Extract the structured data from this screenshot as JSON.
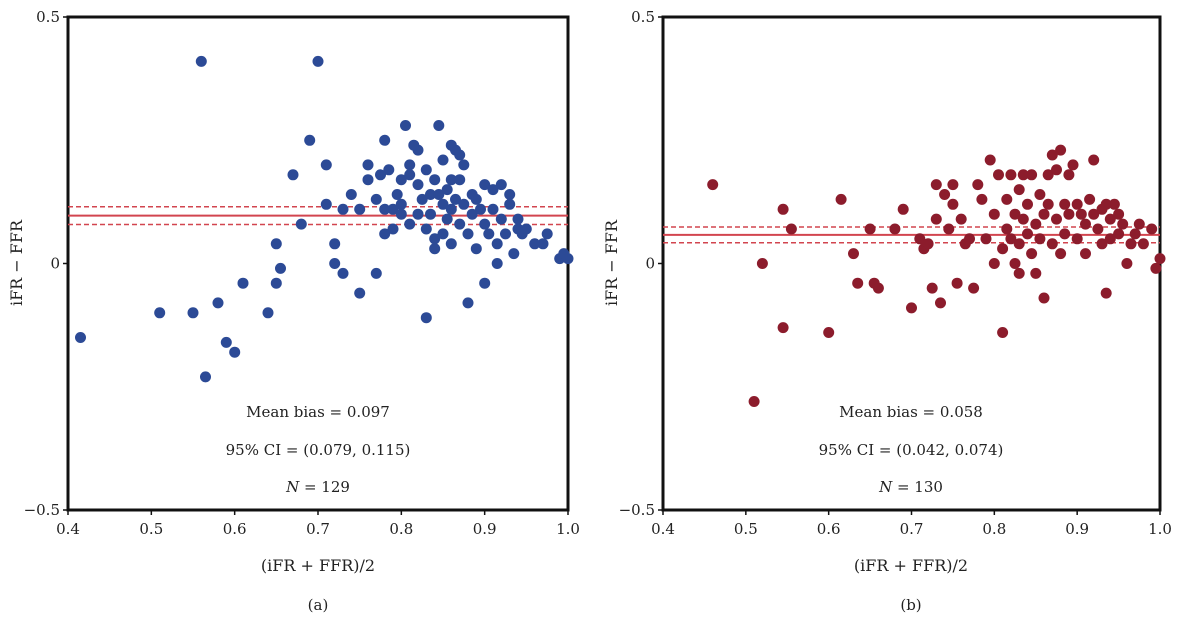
{
  "chart_data": [
    {
      "type": "scatter",
      "panel_label": "(a)",
      "xlabel": "(iFR + FFR)/2",
      "ylabel": "iFR − FFR",
      "xlim": [
        0.4,
        1.0
      ],
      "ylim": [
        -0.5,
        0.5
      ],
      "x_ticks": [
        "0.4",
        "0.5",
        "0.6",
        "0.7",
        "0.8",
        "0.9",
        "1.0"
      ],
      "y_ticks": [
        "−0.5",
        "0",
        "0.5"
      ],
      "point_color": "#2c4a96",
      "line_color": "#d2454f",
      "mean_bias": 0.097,
      "ci": [
        0.079,
        0.115
      ],
      "annotations": {
        "mean_bias": "Mean bias = 0.097",
        "ci": "95% CI = (0.079, 0.115)",
        "n_label": "N",
        "n_value": " = 129"
      },
      "points": [
        [
          0.415,
          -0.15
        ],
        [
          0.51,
          -0.1
        ],
        [
          0.55,
          -0.1
        ],
        [
          0.56,
          0.41
        ],
        [
          0.565,
          -0.23
        ],
        [
          0.58,
          -0.08
        ],
        [
          0.59,
          -0.16
        ],
        [
          0.6,
          -0.18
        ],
        [
          0.61,
          -0.04
        ],
        [
          0.64,
          -0.1
        ],
        [
          0.65,
          -0.04
        ],
        [
          0.65,
          0.04
        ],
        [
          0.655,
          -0.01
        ],
        [
          0.67,
          0.18
        ],
        [
          0.68,
          0.08
        ],
        [
          0.69,
          0.25
        ],
        [
          0.7,
          0.41
        ],
        [
          0.71,
          0.2
        ],
        [
          0.71,
          0.12
        ],
        [
          0.72,
          0.04
        ],
        [
          0.72,
          0.0
        ],
        [
          0.73,
          -0.02
        ],
        [
          0.73,
          0.11
        ],
        [
          0.74,
          0.14
        ],
        [
          0.75,
          -0.06
        ],
        [
          0.75,
          0.11
        ],
        [
          0.76,
          0.17
        ],
        [
          0.76,
          0.2
        ],
        [
          0.77,
          0.13
        ],
        [
          0.77,
          -0.02
        ],
        [
          0.775,
          0.18
        ],
        [
          0.78,
          0.11
        ],
        [
          0.78,
          0.06
        ],
        [
          0.78,
          0.25
        ],
        [
          0.785,
          0.19
        ],
        [
          0.79,
          0.11
        ],
        [
          0.79,
          0.07
        ],
        [
          0.795,
          0.14
        ],
        [
          0.8,
          0.1
        ],
        [
          0.8,
          0.17
        ],
        [
          0.8,
          0.12
        ],
        [
          0.805,
          0.28
        ],
        [
          0.81,
          0.18
        ],
        [
          0.81,
          0.08
        ],
        [
          0.81,
          0.2
        ],
        [
          0.815,
          0.24
        ],
        [
          0.82,
          0.16
        ],
        [
          0.82,
          0.23
        ],
        [
          0.82,
          0.1
        ],
        [
          0.825,
          0.13
        ],
        [
          0.83,
          0.07
        ],
        [
          0.83,
          -0.11
        ],
        [
          0.83,
          0.19
        ],
        [
          0.835,
          0.14
        ],
        [
          0.835,
          0.1
        ],
        [
          0.84,
          0.05
        ],
        [
          0.84,
          0.03
        ],
        [
          0.84,
          0.17
        ],
        [
          0.845,
          0.28
        ],
        [
          0.845,
          0.14
        ],
        [
          0.85,
          0.12
        ],
        [
          0.85,
          0.21
        ],
        [
          0.85,
          0.06
        ],
        [
          0.855,
          0.15
        ],
        [
          0.855,
          0.09
        ],
        [
          0.86,
          0.24
        ],
        [
          0.86,
          0.17
        ],
        [
          0.86,
          0.11
        ],
        [
          0.86,
          0.04
        ],
        [
          0.865,
          0.23
        ],
        [
          0.865,
          0.13
        ],
        [
          0.87,
          0.22
        ],
        [
          0.87,
          0.08
        ],
        [
          0.87,
          0.17
        ],
        [
          0.875,
          0.12
        ],
        [
          0.875,
          0.2
        ],
        [
          0.88,
          0.06
        ],
        [
          0.88,
          -0.08
        ],
        [
          0.885,
          0.1
        ],
        [
          0.885,
          0.14
        ],
        [
          0.89,
          0.03
        ],
        [
          0.89,
          0.13
        ],
        [
          0.895,
          0.11
        ],
        [
          0.9,
          0.16
        ],
        [
          0.9,
          0.08
        ],
        [
          0.9,
          -0.04
        ],
        [
          0.905,
          0.06
        ],
        [
          0.91,
          0.15
        ],
        [
          0.91,
          0.11
        ],
        [
          0.915,
          0.04
        ],
        [
          0.915,
          0.0
        ],
        [
          0.92,
          0.16
        ],
        [
          0.92,
          0.09
        ],
        [
          0.925,
          0.06
        ],
        [
          0.93,
          0.14
        ],
        [
          0.93,
          0.12
        ],
        [
          0.935,
          0.02
        ],
        [
          0.94,
          0.07
        ],
        [
          0.94,
          0.09
        ],
        [
          0.945,
          0.06
        ],
        [
          0.95,
          0.07
        ],
        [
          0.96,
          0.04
        ],
        [
          0.97,
          0.04
        ],
        [
          0.975,
          0.06
        ],
        [
          0.99,
          0.01
        ],
        [
          0.995,
          0.02
        ],
        [
          1.0,
          0.01
        ]
      ]
    },
    {
      "type": "scatter",
      "panel_label": "(b)",
      "xlabel": "(iFR + FFR)/2",
      "ylabel": "iFR − FFR",
      "xlim": [
        0.4,
        1.0
      ],
      "ylim": [
        -0.5,
        0.5
      ],
      "x_ticks": [
        "0.4",
        "0.5",
        "0.6",
        "0.7",
        "0.8",
        "0.9",
        "1.0"
      ],
      "y_ticks": [
        "−0.5",
        "0",
        "0.5"
      ],
      "point_color": "#8c1c2c",
      "line_color": "#d2454f",
      "mean_bias": 0.058,
      "ci": [
        0.042,
        0.074
      ],
      "annotations": {
        "mean_bias": "Mean bias = 0.058",
        "ci": "95% CI = (0.042, 0.074)",
        "n_label": "N",
        "n_value": " = 130"
      },
      "points": [
        [
          0.46,
          0.16
        ],
        [
          0.51,
          -0.28
        ],
        [
          0.52,
          0.0
        ],
        [
          0.545,
          0.11
        ],
        [
          0.545,
          -0.13
        ],
        [
          0.555,
          0.07
        ],
        [
          0.6,
          -0.14
        ],
        [
          0.615,
          0.13
        ],
        [
          0.63,
          0.02
        ],
        [
          0.635,
          -0.04
        ],
        [
          0.65,
          0.07
        ],
        [
          0.655,
          -0.04
        ],
        [
          0.66,
          -0.05
        ],
        [
          0.68,
          0.07
        ],
        [
          0.69,
          0.11
        ],
        [
          0.7,
          -0.09
        ],
        [
          0.71,
          0.05
        ],
        [
          0.715,
          0.03
        ],
        [
          0.72,
          0.04
        ],
        [
          0.725,
          -0.05
        ],
        [
          0.73,
          0.16
        ],
        [
          0.73,
          0.09
        ],
        [
          0.735,
          -0.08
        ],
        [
          0.74,
          0.14
        ],
        [
          0.745,
          0.07
        ],
        [
          0.75,
          0.16
        ],
        [
          0.75,
          0.12
        ],
        [
          0.755,
          -0.04
        ],
        [
          0.76,
          0.09
        ],
        [
          0.765,
          0.04
        ],
        [
          0.77,
          0.05
        ],
        [
          0.775,
          -0.05
        ],
        [
          0.78,
          0.16
        ],
        [
          0.785,
          0.13
        ],
        [
          0.79,
          0.05
        ],
        [
          0.795,
          0.21
        ],
        [
          0.8,
          0.0
        ],
        [
          0.8,
          0.1
        ],
        [
          0.805,
          0.18
        ],
        [
          0.81,
          0.03
        ],
        [
          0.81,
          -0.14
        ],
        [
          0.815,
          0.13
        ],
        [
          0.815,
          0.07
        ],
        [
          0.82,
          0.18
        ],
        [
          0.82,
          0.05
        ],
        [
          0.825,
          0.1
        ],
        [
          0.825,
          0.0
        ],
        [
          0.83,
          0.15
        ],
        [
          0.83,
          0.04
        ],
        [
          0.83,
          -0.02
        ],
        [
          0.835,
          0.18
        ],
        [
          0.835,
          0.09
        ],
        [
          0.84,
          0.06
        ],
        [
          0.84,
          0.12
        ],
        [
          0.845,
          0.18
        ],
        [
          0.845,
          0.02
        ],
        [
          0.85,
          0.08
        ],
        [
          0.85,
          -0.02
        ],
        [
          0.855,
          0.14
        ],
        [
          0.855,
          0.05
        ],
        [
          0.86,
          0.1
        ],
        [
          0.86,
          -0.07
        ],
        [
          0.865,
          0.18
        ],
        [
          0.865,
          0.12
        ],
        [
          0.87,
          0.22
        ],
        [
          0.87,
          0.04
        ],
        [
          0.875,
          0.19
        ],
        [
          0.875,
          0.09
        ],
        [
          0.88,
          0.23
        ],
        [
          0.88,
          0.02
        ],
        [
          0.885,
          0.12
        ],
        [
          0.885,
          0.06
        ],
        [
          0.89,
          0.18
        ],
        [
          0.89,
          0.1
        ],
        [
          0.895,
          0.2
        ],
        [
          0.9,
          0.05
        ],
        [
          0.9,
          0.12
        ],
        [
          0.905,
          0.1
        ],
        [
          0.91,
          0.08
        ],
        [
          0.91,
          0.02
        ],
        [
          0.915,
          0.13
        ],
        [
          0.92,
          0.21
        ],
        [
          0.92,
          0.1
        ],
        [
          0.925,
          0.07
        ],
        [
          0.93,
          0.11
        ],
        [
          0.93,
          0.04
        ],
        [
          0.935,
          0.12
        ],
        [
          0.935,
          -0.06
        ],
        [
          0.94,
          0.09
        ],
        [
          0.94,
          0.05
        ],
        [
          0.945,
          0.12
        ],
        [
          0.95,
          0.06
        ],
        [
          0.95,
          0.1
        ],
        [
          0.955,
          0.08
        ],
        [
          0.96,
          0.0
        ],
        [
          0.965,
          0.04
        ],
        [
          0.97,
          0.06
        ],
        [
          0.975,
          0.08
        ],
        [
          0.98,
          0.04
        ],
        [
          0.99,
          0.07
        ],
        [
          0.995,
          -0.01
        ],
        [
          1.0,
          0.01
        ]
      ]
    }
  ]
}
